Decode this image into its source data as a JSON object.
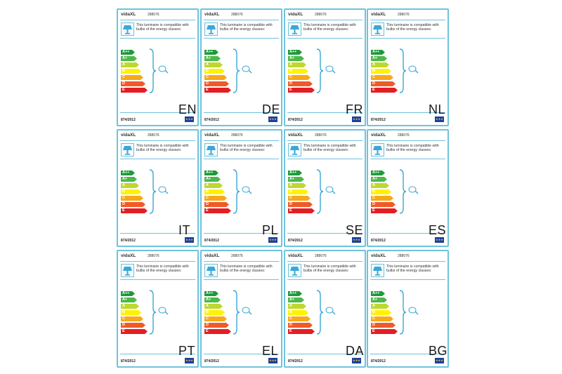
{
  "cards": [
    {
      "lang": "EN"
    },
    {
      "lang": "DE"
    },
    {
      "lang": "FR"
    },
    {
      "lang": "NL"
    },
    {
      "lang": "IT"
    },
    {
      "lang": "PL"
    },
    {
      "lang": "SE"
    },
    {
      "lang": "ES"
    },
    {
      "lang": "PT"
    },
    {
      "lang": "EL"
    },
    {
      "lang": "DA"
    },
    {
      "lang": "BG"
    }
  ],
  "label": {
    "brand": "vidaXL",
    "model": "288076",
    "description": "This luminaire is compatible with bulbs of the energy classes:",
    "regulation": "874/2012",
    "eu_flag": "★★★",
    "classes": [
      {
        "name": "A++",
        "color": "#1f9a3a"
      },
      {
        "name": "A+",
        "color": "#4cb848"
      },
      {
        "name": "A",
        "color": "#bfd730"
      },
      {
        "name": "B",
        "color": "#fff200"
      },
      {
        "name": "C",
        "color": "#f7a81b"
      },
      {
        "name": "D",
        "color": "#f05a28"
      },
      {
        "name": "E",
        "color": "#e31e24"
      }
    ],
    "icons": [
      "lamp-icon",
      "bulb-icon",
      "eu-flag-icon"
    ]
  }
}
